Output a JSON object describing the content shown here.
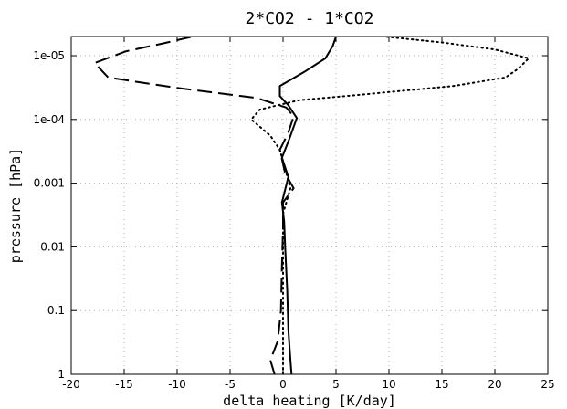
{
  "chart_data": {
    "type": "line",
    "title": "2*CO2 - 1*CO2",
    "xlabel": "delta heating [K/day]",
    "ylabel": "pressure [hPa]",
    "xlim": [
      -20,
      25
    ],
    "ylim": [
      1,
      5e-06
    ],
    "yscale": "log",
    "grid": true,
    "x_ticks": [
      -20,
      -15,
      -10,
      -5,
      0,
      5,
      10,
      15,
      20,
      25
    ],
    "x_tick_labels": [
      "-20",
      "-15",
      "-10",
      "-5",
      "0",
      "5",
      "10",
      "15",
      "20",
      "25"
    ],
    "y_ticks": [
      1e-05,
      0.0001,
      0.001,
      0.01,
      0.1,
      1
    ],
    "y_tick_labels": [
      "1e-05",
      "1e-04",
      "0.001",
      "0.01",
      "0.1",
      "1"
    ],
    "series": [
      {
        "style": "solid",
        "points": [
          [
            0.8,
            1.0
          ],
          [
            0.7,
            0.6
          ],
          [
            0.5,
            0.2
          ],
          [
            0.4,
            0.05
          ],
          [
            0.2,
            0.01
          ],
          [
            0.1,
            0.004
          ],
          [
            -0.1,
            0.002
          ],
          [
            0.5,
            0.0008
          ],
          [
            -0.1,
            0.0004
          ],
          [
            0.6,
            0.0002
          ],
          [
            1.3,
            9.5e-05
          ],
          [
            0.5,
            6e-05
          ],
          [
            -0.3,
            4.3e-05
          ],
          [
            -0.3,
            3e-05
          ],
          [
            2.0,
            1.8e-05
          ],
          [
            4.0,
            1.1e-05
          ],
          [
            4.7,
            7e-06
          ],
          [
            5.0,
            5e-06
          ]
        ]
      },
      {
        "style": "long-dash",
        "points": [
          [
            -0.8,
            1.0
          ],
          [
            -1.2,
            0.6
          ],
          [
            -0.5,
            0.3
          ],
          [
            -0.2,
            0.1
          ],
          [
            -0.1,
            0.02
          ],
          [
            0.0,
            0.005
          ],
          [
            0.0,
            0.002
          ],
          [
            1.0,
            0.0012
          ],
          [
            0.2,
            0.0007
          ],
          [
            -0.3,
            0.0003
          ],
          [
            0.5,
            0.00016
          ],
          [
            1.0,
            9e-05
          ],
          [
            0.3,
            6.5e-05
          ],
          [
            -2.5,
            4.6e-05
          ],
          [
            -10.0,
            3.2e-05
          ],
          [
            -16.5,
            2.2e-05
          ],
          [
            -17.8,
            1.3e-05
          ],
          [
            -14.8,
            8.5e-06
          ],
          [
            -11.5,
            6.5e-06
          ],
          [
            -8.5,
            5e-06
          ]
        ]
      },
      {
        "style": "dotted",
        "points": [
          [
            0.0,
            1.0
          ],
          [
            0.0,
            0.1
          ],
          [
            0.0,
            0.01
          ],
          [
            0.0,
            0.003
          ],
          [
            0.7,
            0.0012
          ],
          [
            0.2,
            0.0006
          ],
          [
            -0.3,
            0.0003
          ],
          [
            -1.2,
            0.00018
          ],
          [
            -3.0,
            0.0001
          ],
          [
            -2.2,
            7e-05
          ],
          [
            1.5,
            5e-05
          ],
          [
            8.0,
            4e-05
          ],
          [
            16.0,
            3e-05
          ],
          [
            21.0,
            2.2e-05
          ],
          [
            22.2,
            1.6e-05
          ],
          [
            23.2,
            1.1e-05
          ],
          [
            20.0,
            8e-06
          ],
          [
            15.0,
            6.2e-06
          ],
          [
            9.5,
            5e-06
          ]
        ]
      }
    ]
  }
}
